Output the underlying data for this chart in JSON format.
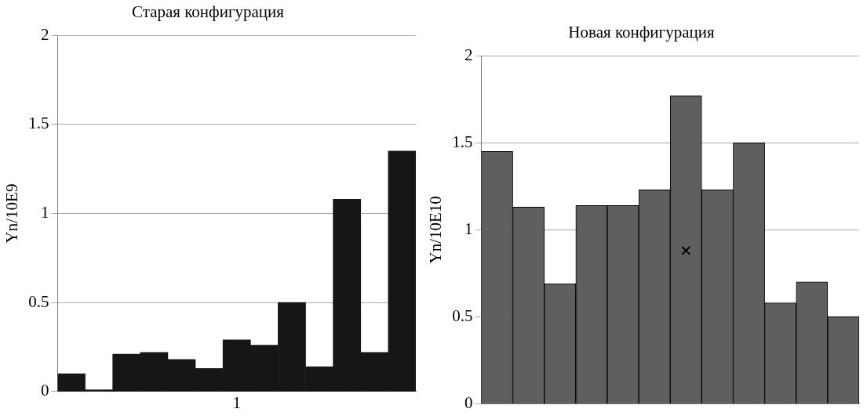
{
  "chart_data": [
    {
      "type": "bar",
      "title": "Старая конфигурация",
      "ylabel": "Yn/10E9",
      "categories": [
        null,
        null,
        null,
        null,
        null,
        null,
        "1",
        null,
        null,
        null,
        null,
        null,
        null
      ],
      "values": [
        0.1,
        0.01,
        0.21,
        0.22,
        0.18,
        0.13,
        0.29,
        0.26,
        0.5,
        0.14,
        1.08,
        0.22,
        1.35
      ],
      "color": "#161616",
      "ylim": [
        0,
        2
      ],
      "yticks": [
        0,
        0.5,
        1,
        1.5,
        2
      ],
      "grid": "y"
    },
    {
      "type": "bar",
      "title": "Новая конфигурация",
      "ylabel": "Yn/10E10",
      "categories": [
        null,
        null,
        null,
        null,
        null,
        null,
        null,
        null,
        null,
        null,
        null,
        null
      ],
      "marker": "cross",
      "tick_labels": "y",
      "ylim": [
        0,
        2
      ],
      "yticks": [
        0,
        0.5,
        1,
        1.5,
        2
      ],
      "grid": "y",
      "series": [
        {
          "color": "#5f5f5f",
          "values": [
            1.45,
            1.13,
            0.69,
            1.14,
            1.14,
            1.23,
            1.77,
            1.23,
            1.5,
            0.58,
            0.7,
            0.5
          ]
        },
        {
          "type": "scatter",
          "color": "#000000",
          "values": [
            null,
            null,
            null,
            null,
            null,
            null,
            0.88,
            null,
            null,
            null,
            null,
            null
          ]
        }
      ]
    }
  ]
}
